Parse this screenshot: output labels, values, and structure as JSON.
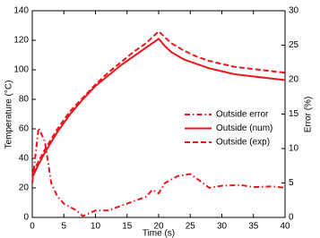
{
  "chart_data": {
    "type": "line",
    "xlabel": "Time (s)",
    "ylabel": "Temperature (°C)",
    "y2label": "Error (%)",
    "xlim": [
      0,
      40
    ],
    "xticks": [
      0,
      5,
      10,
      15,
      20,
      25,
      30,
      35,
      40
    ],
    "ylim": [
      0,
      140
    ],
    "yticks": [
      0,
      20,
      40,
      60,
      80,
      100,
      120,
      140
    ],
    "y2lim": [
      0,
      30
    ],
    "y2ticks": [
      0,
      5,
      10,
      15,
      20,
      25,
      30
    ],
    "legend": "right",
    "series": [
      {
        "name": "Outside error",
        "color": "#e8161b",
        "dash": "dashdot",
        "axis": "y2",
        "x": [
          0,
          1,
          2,
          3,
          4,
          5,
          7,
          8,
          10,
          12,
          15,
          18,
          19,
          20,
          21,
          23,
          25,
          27,
          28,
          30,
          33,
          35,
          38,
          40
        ],
        "values": [
          5,
          13,
          11,
          5,
          3,
          2,
          1,
          0.2,
          1,
          1,
          2,
          3,
          4,
          3.5,
          5,
          6,
          6.3,
          5,
          4.3,
          4.6,
          4.7,
          4.4,
          4.5,
          4.3
        ]
      },
      {
        "name": "Outside (num)",
        "color": "#e8161b",
        "dash": "solid",
        "x": [
          0,
          1,
          2,
          3,
          4,
          5,
          6,
          8,
          10,
          12,
          14,
          16,
          18,
          20,
          21,
          22,
          24,
          26,
          28,
          30,
          32,
          34,
          36,
          38,
          40
        ],
        "values": [
          27,
          36,
          44,
          51,
          58,
          64,
          70,
          80,
          89,
          96,
          103,
          109,
          115,
          121,
          116,
          112,
          107,
          104,
          101,
          99,
          97,
          96,
          95,
          94,
          93
        ]
      },
      {
        "name": "Outside (exp)",
        "color": "#e8161b",
        "dash": "dashed",
        "x": [
          0,
          1,
          2,
          3,
          4,
          5,
          6,
          8,
          10,
          12,
          14,
          16,
          18,
          20,
          21,
          22,
          24,
          26,
          28,
          30,
          32,
          34,
          36,
          38,
          40
        ],
        "values": [
          30,
          38,
          46,
          53,
          60,
          66,
          72,
          81,
          90,
          98,
          105,
          112,
          118,
          126,
          122,
          118,
          113,
          109,
          106,
          104,
          102,
          101,
          100,
          99,
          98
        ]
      }
    ]
  }
}
